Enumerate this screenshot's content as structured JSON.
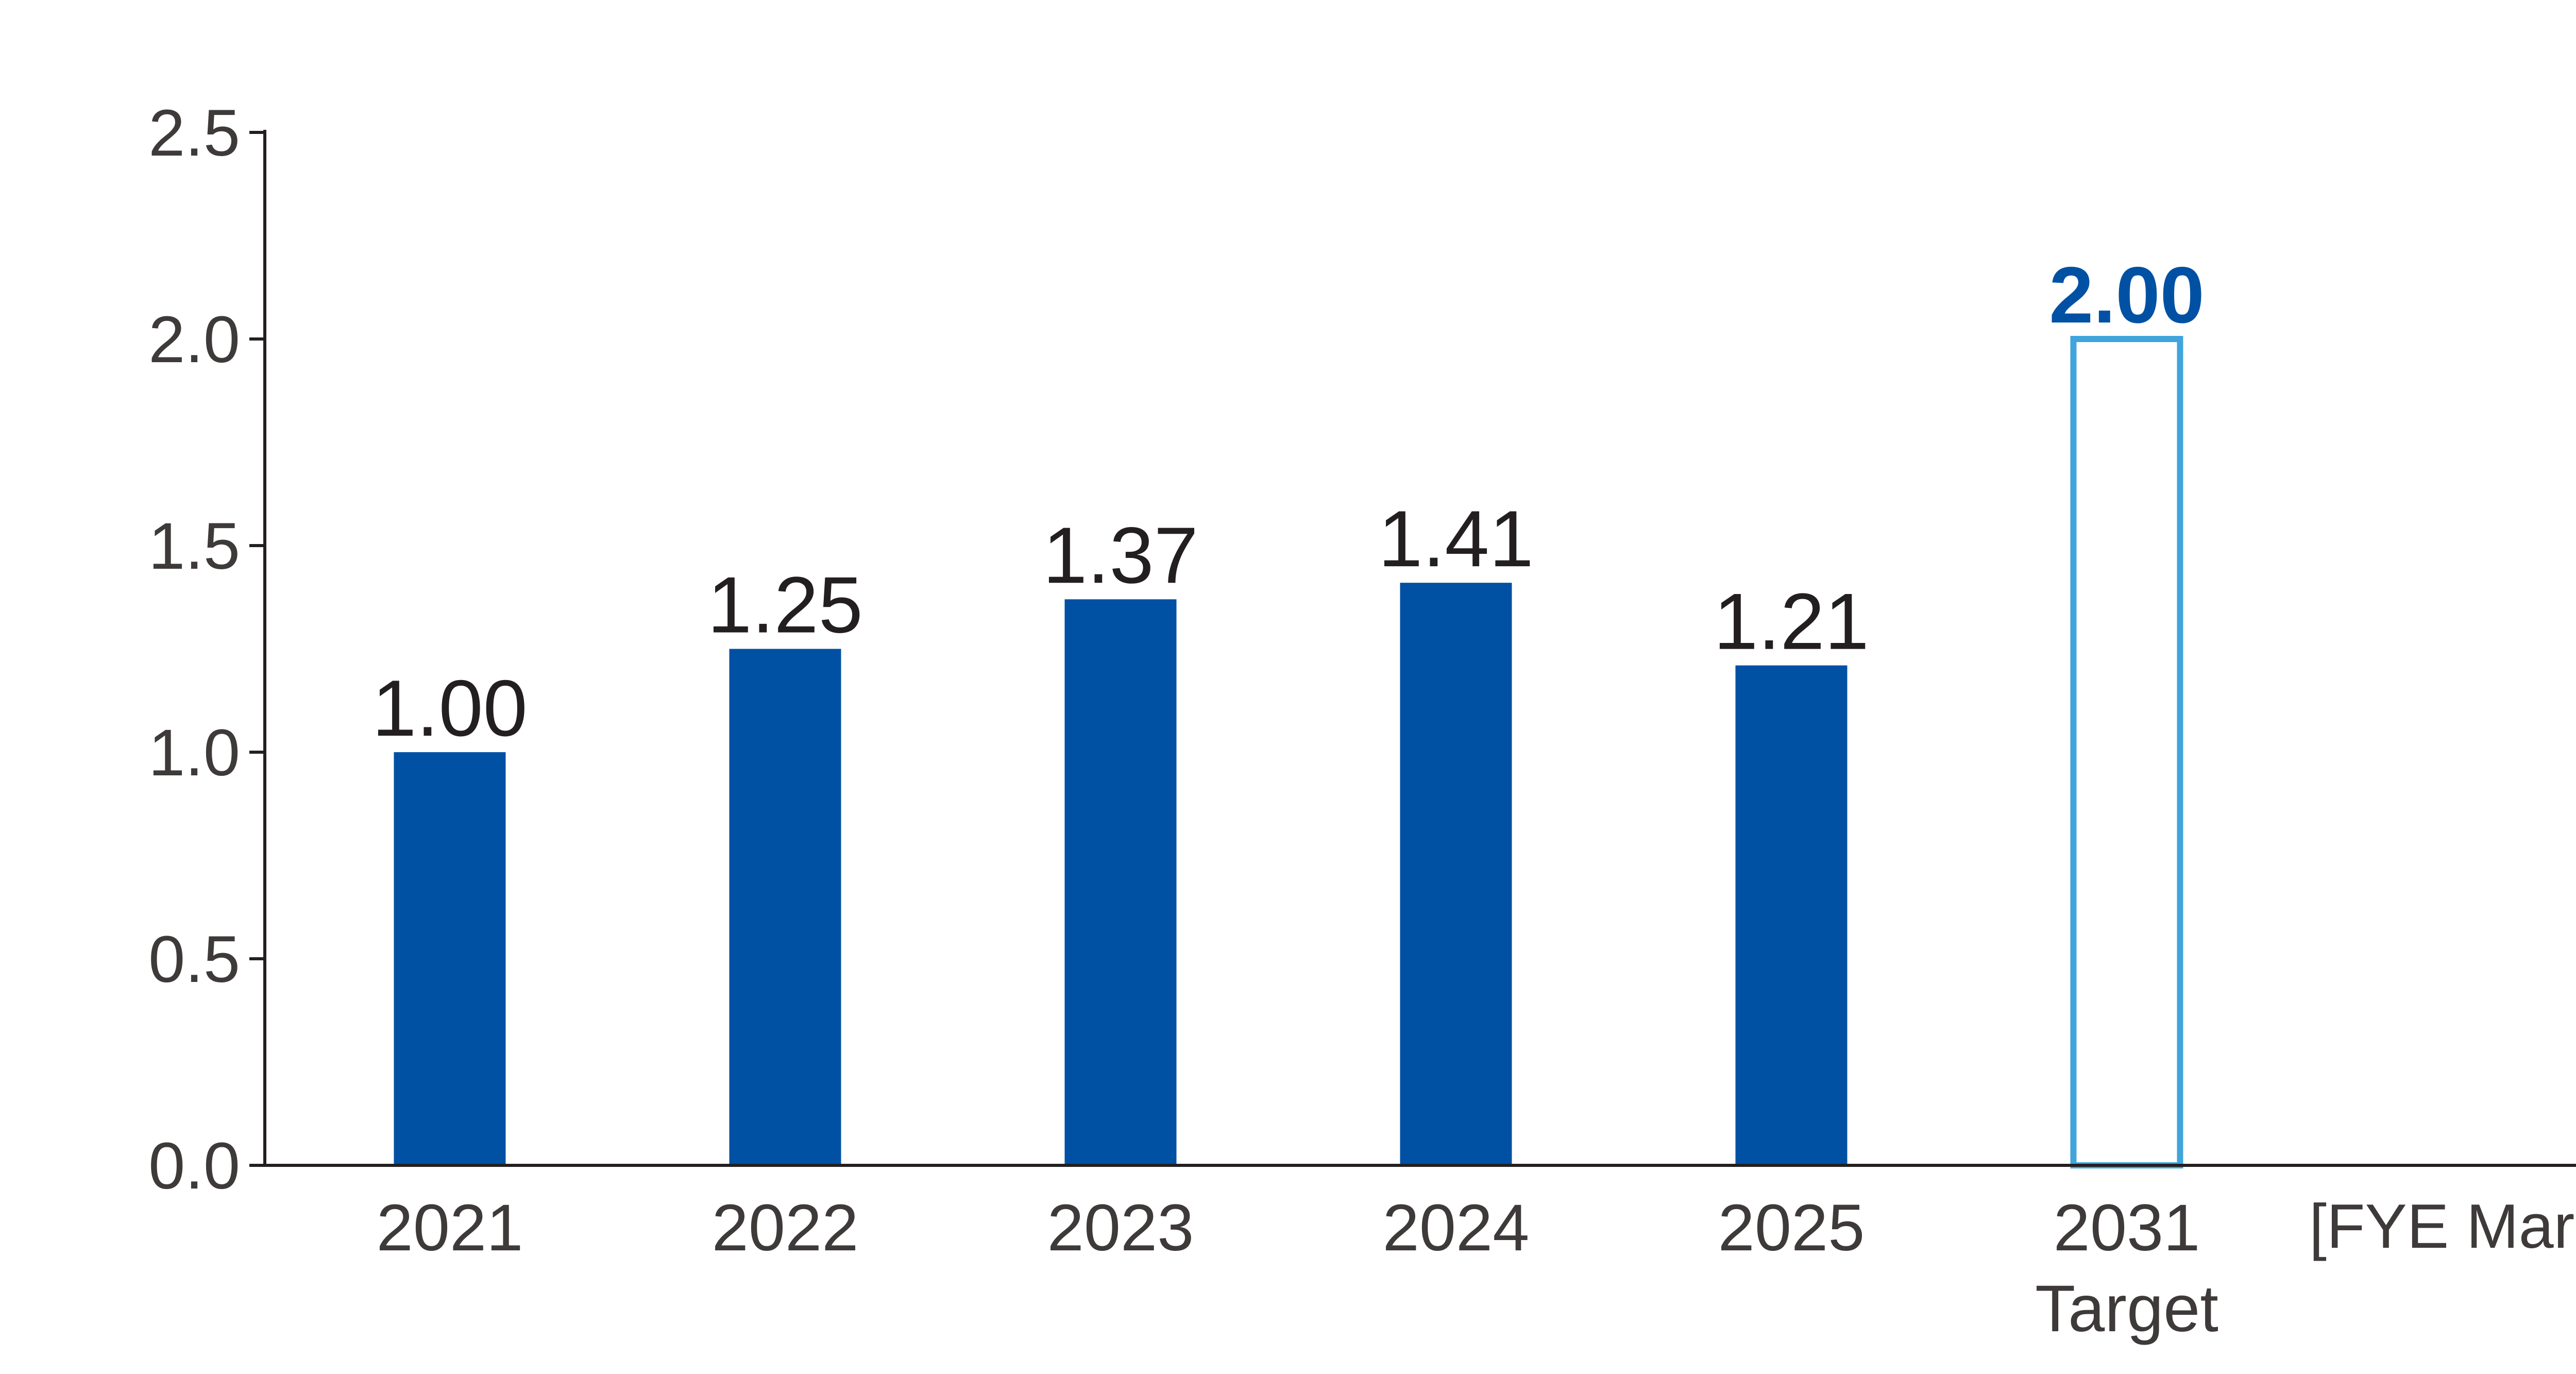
{
  "chart_data": {
    "type": "bar",
    "categories": [
      "2021",
      "2022",
      "2023",
      "2024",
      "2025",
      "2031"
    ],
    "category_sublabels": [
      "",
      "",
      "",
      "",
      "",
      "Target"
    ],
    "values": [
      1.0,
      1.25,
      1.37,
      1.41,
      1.21,
      2.0
    ],
    "value_labels": [
      "1.00",
      "1.25",
      "1.37",
      "1.41",
      "1.21",
      "2.00"
    ],
    "is_target": [
      false,
      false,
      false,
      false,
      false,
      true
    ],
    "title": "",
    "xlabel": "",
    "ylabel": "",
    "x_unit_label": "[FYE March]",
    "ylim": [
      0,
      2.5
    ],
    "yticks": [
      0.0,
      0.5,
      1.0,
      1.5,
      2.0,
      2.5
    ],
    "ytick_labels": [
      "0.0",
      "0.5",
      "1.0",
      "1.5",
      "2.0",
      "2.5"
    ],
    "grid": false,
    "legend": "none",
    "colors": {
      "bar_fill": "#0051a4",
      "target_outline": "#3fa5dc",
      "target_label": "#0051a4",
      "axis": "#231f20",
      "text": "#3e3a39"
    }
  }
}
